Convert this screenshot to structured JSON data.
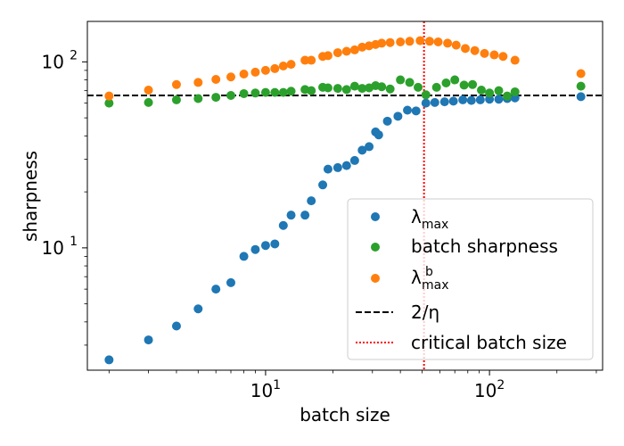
{
  "chart_data": {
    "type": "scatter",
    "x_scale": "log",
    "y_scale": "log",
    "xlim": [
      1.6,
      320
    ],
    "ylim": [
      2.2,
      165
    ],
    "xlabel": "batch size",
    "ylabel": "sharpness",
    "x_ticks": [
      {
        "value": 10,
        "base": "10",
        "exp": "1"
      },
      {
        "value": 100,
        "base": "10",
        "exp": "2"
      }
    ],
    "y_ticks": [
      {
        "value": 10,
        "base": "10",
        "exp": "1"
      },
      {
        "value": 100,
        "base": "10",
        "exp": "2"
      }
    ],
    "legend_position": "lower-right",
    "series": [
      {
        "name": "λ_max",
        "legend_main": "λ",
        "legend_sub": "max",
        "legend_sup": "",
        "color": "#1f77b4",
        "points": [
          [
            2,
            2.5
          ],
          [
            3,
            3.2
          ],
          [
            4,
            3.8
          ],
          [
            5,
            4.7
          ],
          [
            6,
            6.0
          ],
          [
            7,
            6.5
          ],
          [
            8,
            9.0
          ],
          [
            9,
            9.8
          ],
          [
            10,
            10.3
          ],
          [
            11,
            10.5
          ],
          [
            12,
            13.2
          ],
          [
            13,
            15.0
          ],
          [
            15,
            15.0
          ],
          [
            16,
            17.9
          ],
          [
            18,
            21.8
          ],
          [
            19,
            26.5
          ],
          [
            21,
            27.0
          ],
          [
            23,
            27.7
          ],
          [
            25,
            29.5
          ],
          [
            27,
            33.5
          ],
          [
            29,
            35.0
          ],
          [
            31,
            42.0
          ],
          [
            32,
            40.5
          ],
          [
            35,
            48.0
          ],
          [
            39,
            51.0
          ],
          [
            43,
            55.0
          ],
          [
            47,
            54.5
          ],
          [
            52,
            60.0
          ],
          [
            57,
            60.5
          ],
          [
            63,
            61.0
          ],
          [
            69,
            61.5
          ],
          [
            76,
            62.5
          ],
          [
            83,
            62.0
          ],
          [
            91,
            62.5
          ],
          [
            100,
            63.0
          ],
          [
            110,
            63.0
          ],
          [
            120,
            63.5
          ],
          [
            130,
            64.0
          ],
          [
            256,
            65.0
          ]
        ]
      },
      {
        "name": "batch sharpness",
        "legend_main": "batch sharpness",
        "legend_sub": "",
        "legend_sup": "",
        "color": "#2ca02c",
        "points": [
          [
            2,
            60.0
          ],
          [
            3,
            60.5
          ],
          [
            4,
            62.5
          ],
          [
            5,
            63.5
          ],
          [
            6,
            64.5
          ],
          [
            7,
            66.0
          ],
          [
            8,
            67.5
          ],
          [
            9,
            68.0
          ],
          [
            10,
            68.5
          ],
          [
            11,
            68.5
          ],
          [
            12,
            68.5
          ],
          [
            13,
            69.5
          ],
          [
            15,
            71.0
          ],
          [
            16,
            70.0
          ],
          [
            18,
            73.0
          ],
          [
            19,
            72.5
          ],
          [
            21,
            72.0
          ],
          [
            23,
            71.0
          ],
          [
            25,
            74.0
          ],
          [
            27,
            72.0
          ],
          [
            29,
            72.5
          ],
          [
            31,
            74.5
          ],
          [
            33,
            73.5
          ],
          [
            36,
            71.5
          ],
          [
            40,
            80.0
          ],
          [
            44,
            77.5
          ],
          [
            48,
            73.0
          ],
          [
            52,
            66.5
          ],
          [
            58,
            73.0
          ],
          [
            64,
            77.0
          ],
          [
            70,
            80.0
          ],
          [
            77,
            75.0
          ],
          [
            84,
            75.5
          ],
          [
            92,
            70.5
          ],
          [
            100,
            68.0
          ],
          [
            110,
            70.0
          ],
          [
            120,
            65.5
          ],
          [
            130,
            69.0
          ],
          [
            256,
            74.0
          ]
        ]
      },
      {
        "name": "λ_max^b",
        "legend_main": "λ",
        "legend_sub": "max",
        "legend_sup": "b",
        "color": "#ff7f0e",
        "points": [
          [
            2,
            65.5
          ],
          [
            3,
            70.5
          ],
          [
            4,
            75.5
          ],
          [
            5,
            77.5
          ],
          [
            6,
            80.5
          ],
          [
            7,
            83.0
          ],
          [
            8,
            86.0
          ],
          [
            9,
            88.0
          ],
          [
            10,
            90.0
          ],
          [
            11,
            92.0
          ],
          [
            12,
            95.0
          ],
          [
            13,
            97.0
          ],
          [
            15,
            102.0
          ],
          [
            16,
            102.0
          ],
          [
            18,
            107.0
          ],
          [
            19,
            108.0
          ],
          [
            21,
            112.0
          ],
          [
            23,
            114.0
          ],
          [
            25,
            116.0
          ],
          [
            27,
            120.0
          ],
          [
            29,
            122.0
          ],
          [
            31,
            124.0
          ],
          [
            33,
            126.0
          ],
          [
            36,
            127.0
          ],
          [
            40,
            128.0
          ],
          [
            44,
            129.0
          ],
          [
            49,
            130.0
          ],
          [
            54,
            129.0
          ],
          [
            59,
            128.0
          ],
          [
            65,
            126.0
          ],
          [
            71,
            123.0
          ],
          [
            78,
            118.0
          ],
          [
            86,
            115.0
          ],
          [
            95,
            111.0
          ],
          [
            105,
            109.0
          ],
          [
            115,
            107.0
          ],
          [
            130,
            102.0
          ],
          [
            256,
            86.5
          ]
        ]
      }
    ],
    "reference_lines": [
      {
        "name": "2/η",
        "legend_text": "2/η",
        "orientation": "horizontal",
        "value": 66,
        "color": "#000000",
        "style": "dashed"
      },
      {
        "name": "critical batch size",
        "legend_text": "critical batch size",
        "orientation": "vertical",
        "value": 51,
        "color": "#ff0000",
        "style": "dotted"
      }
    ]
  }
}
